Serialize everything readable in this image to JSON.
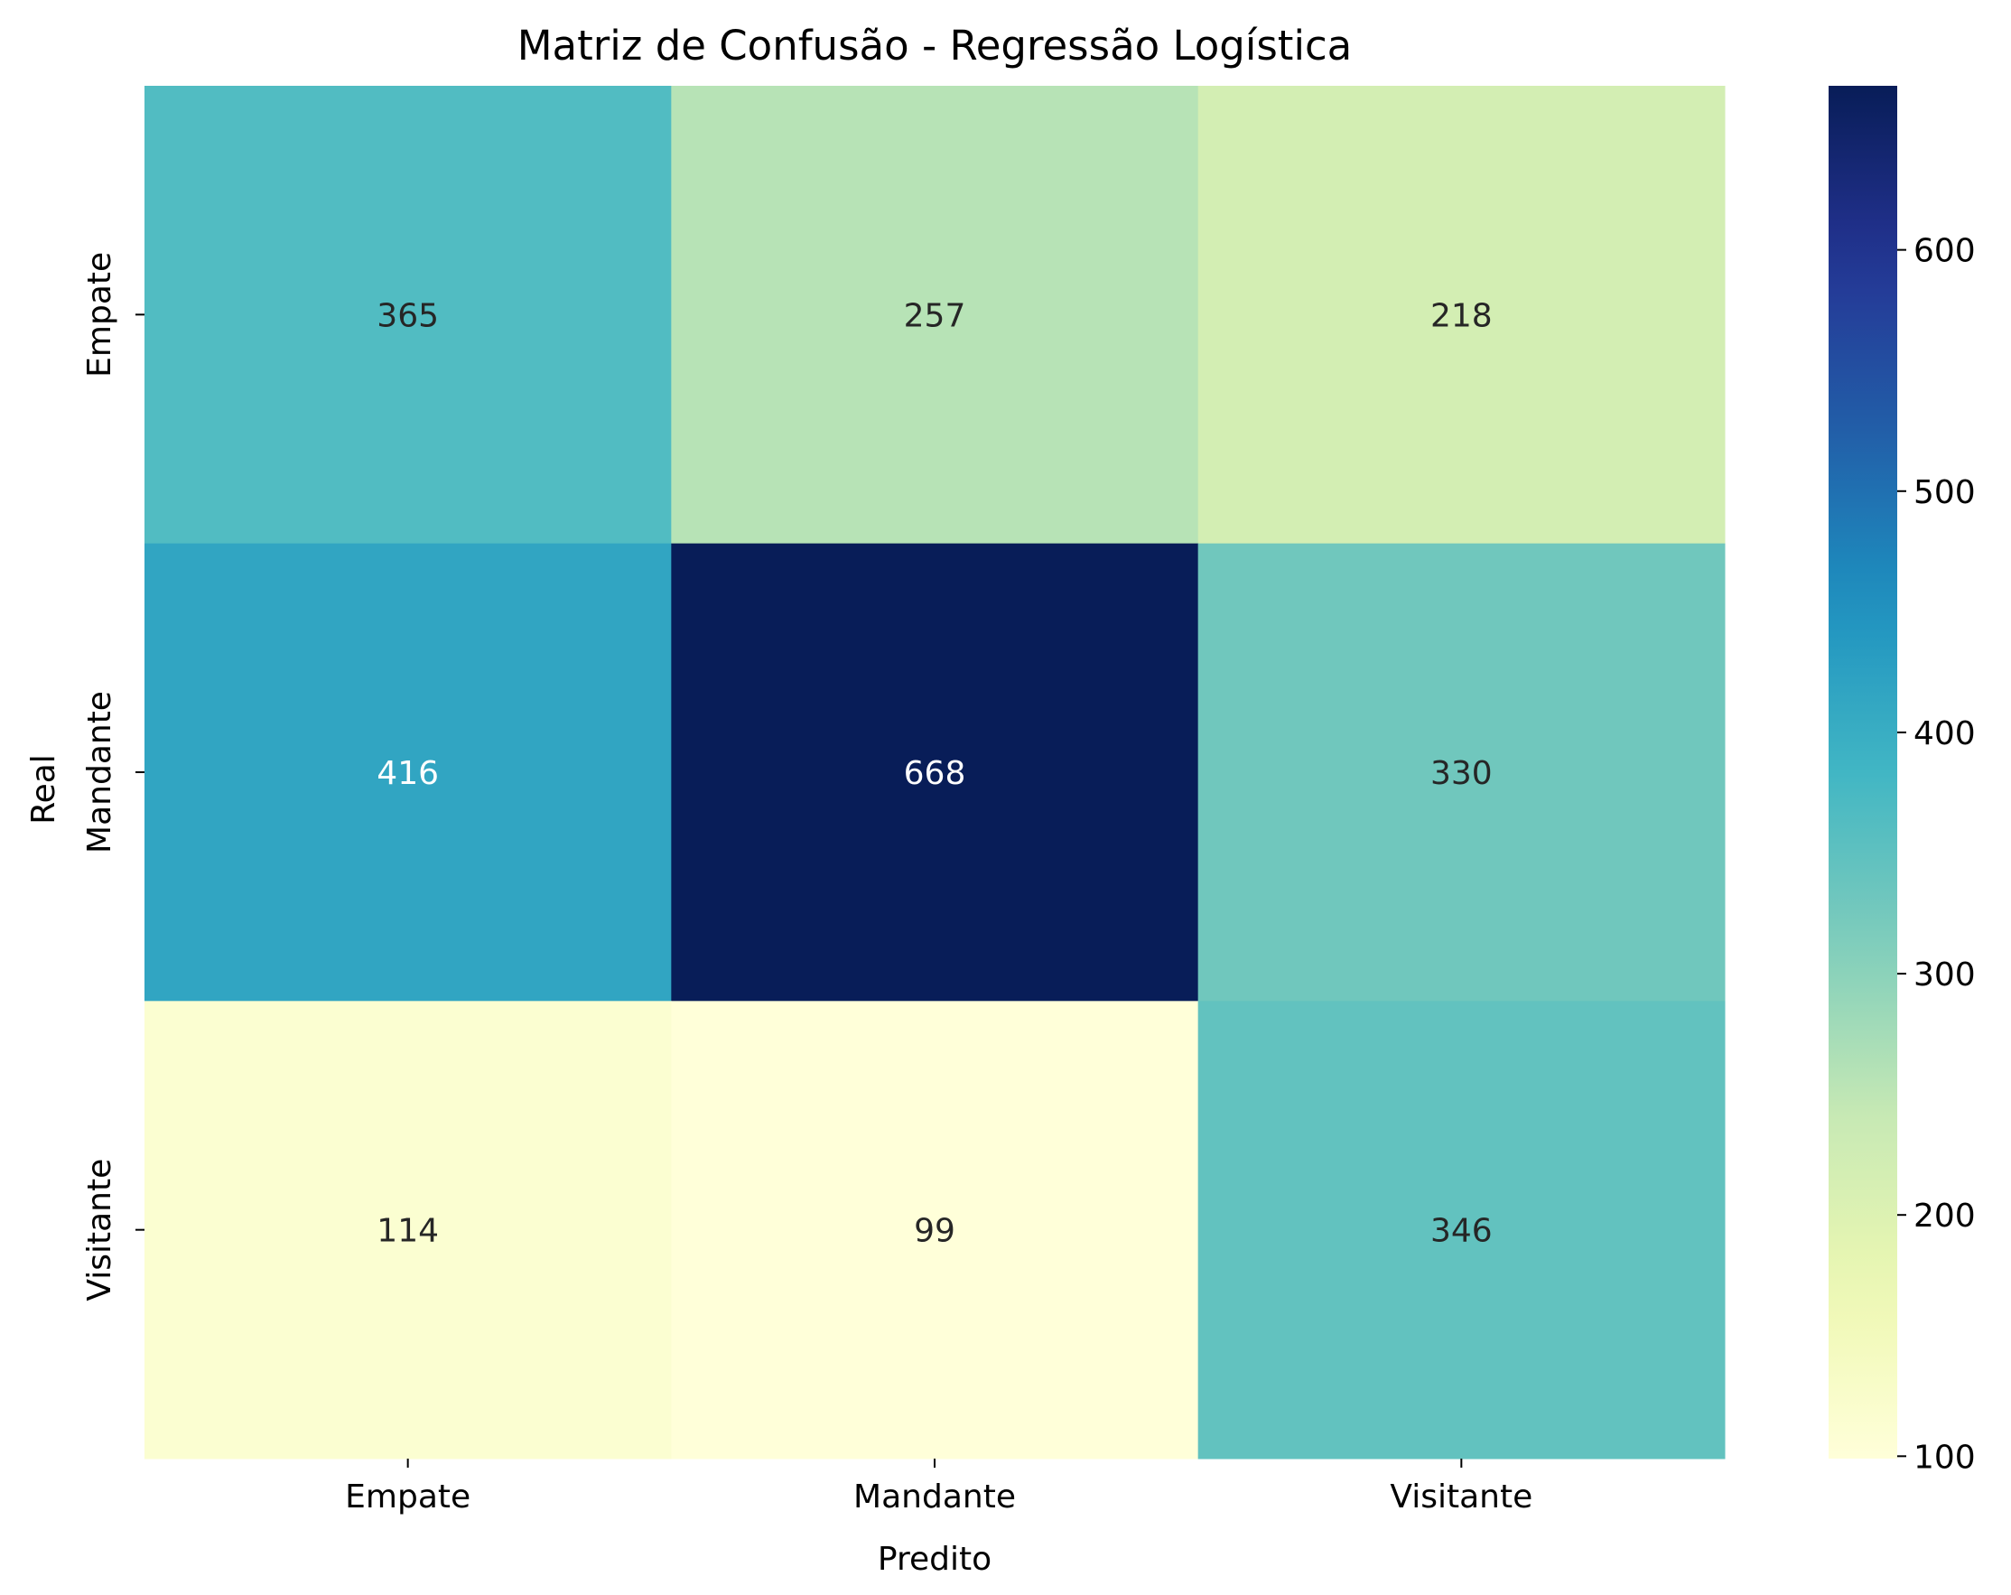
{
  "chart_data": {
    "type": "heatmap",
    "title": "Matriz de Confusão - Regressão Logística",
    "xlabel": "Predito",
    "ylabel": "Real",
    "x_categories": [
      "Empate",
      "Mandante",
      "Visitante"
    ],
    "y_categories": [
      "Empate",
      "Mandante",
      "Visitante"
    ],
    "values": [
      [
        365,
        257,
        218
      ],
      [
        416,
        668,
        330
      ],
      [
        114,
        99,
        346
      ]
    ],
    "colormap": "YlGnBu",
    "colorbar": {
      "min": 99,
      "max": 668,
      "ticks": [
        "100",
        "200",
        "300",
        "400",
        "500",
        "600"
      ]
    },
    "colors": {
      "annotation_light": "#ffffff",
      "annotation_dark": "#262626",
      "text": "#000000"
    }
  }
}
